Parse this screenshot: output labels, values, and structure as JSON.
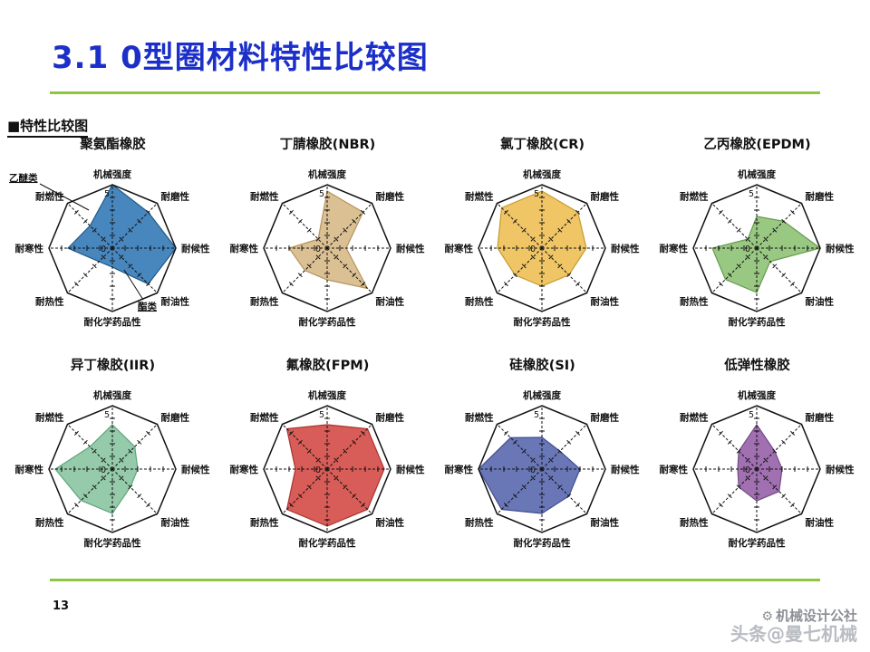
{
  "title": "3.1 0型圈材料特性比较图",
  "section_label": "■特性比较图",
  "page_number": "13",
  "watermark": {
    "line1": "机械设计公社",
    "line2": "头条@曼七机械",
    "gear_icon": "gear-icon"
  },
  "accent": {
    "title_color": "#1c2fc8",
    "rule_color": "#8dc63f"
  },
  "axes": [
    "机械强度",
    "耐磨性",
    "耐候性",
    "耐油性",
    "耐化学药品性",
    "耐热性",
    "耐寒性",
    "耐燃性"
  ],
  "scale": {
    "min": 0,
    "max": 5,
    "max_label": "5",
    "min_label": "0"
  },
  "chart_data": [
    {
      "type": "radar",
      "title": "聚氨酯橡胶",
      "color": "#3e80ba",
      "stroke": "#205a85",
      "values": [
        5,
        4,
        5,
        4,
        1.5,
        1.5,
        3.5,
        2.5
      ],
      "annotations": [
        "乙醚类",
        "酯类"
      ]
    },
    {
      "type": "radar",
      "title": "丁腈橡胶(NBR)",
      "color": "#d8bd8d",
      "stroke": "#b5945c",
      "values": [
        4.5,
        4,
        1.5,
        4.5,
        2.5,
        2.5,
        3,
        1
      ]
    },
    {
      "type": "radar",
      "title": "氯丁橡胶(CR)",
      "color": "#eec25e",
      "stroke": "#c59a2f",
      "values": [
        4.5,
        4,
        3.5,
        3,
        3,
        3,
        3.5,
        4.5
      ]
    },
    {
      "type": "radar",
      "title": "乙丙橡胶(EPDM)",
      "color": "#94c57c",
      "stroke": "#659a4b",
      "values": [
        2.5,
        3,
        5,
        1.5,
        3.5,
        3.5,
        3.5,
        1
      ]
    },
    {
      "type": "radar",
      "title": "异丁橡胶(IIR)",
      "color": "#8fc8a5",
      "stroke": "#5ea57b",
      "values": [
        3.5,
        2.5,
        2,
        2,
        3.5,
        3.5,
        4.5,
        2.5
      ]
    },
    {
      "type": "radar",
      "title": "氟橡胶(FPM)",
      "color": "#d6534e",
      "stroke": "#a93531",
      "values": [
        3.5,
        4.5,
        4.5,
        4.5,
        4.5,
        4.5,
        2.5,
        4.5
      ]
    },
    {
      "type": "radar",
      "title": "硅橡胶(SI)",
      "color": "#6170b3",
      "stroke": "#414f92",
      "values": [
        2.5,
        2,
        3,
        3,
        3.5,
        4.5,
        5,
        3.5
      ]
    },
    {
      "type": "radar",
      "title": "低弹性橡胶",
      "color": "#9c68ad",
      "stroke": "#744a85",
      "values": [
        3.5,
        2,
        2,
        2.5,
        2.5,
        2,
        1.5,
        2
      ]
    }
  ]
}
